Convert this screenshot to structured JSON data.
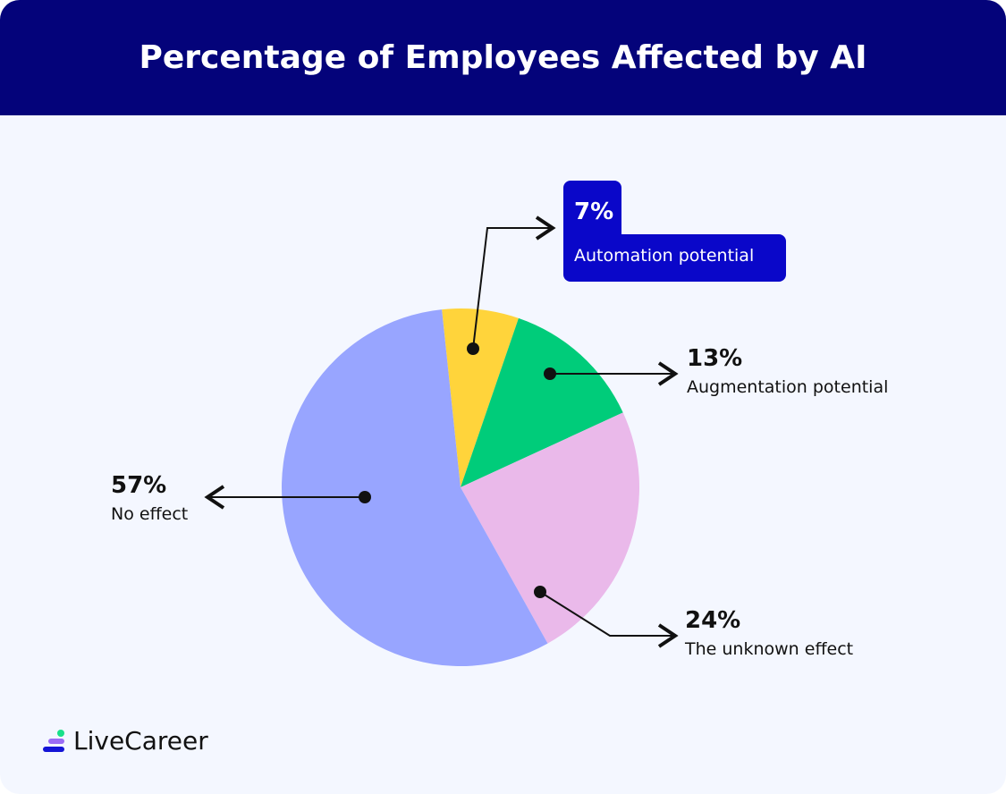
{
  "chart_data": {
    "type": "pie",
    "title": "Percentage of Employees Affected by AI",
    "slices": [
      {
        "label": "Automation potential",
        "value": 7,
        "display": "7%",
        "color": "#ffd43b"
      },
      {
        "label": "Augmentation potential",
        "value": 13,
        "display": "13%",
        "color": "#00cc7a"
      },
      {
        "label": "The unknown effect",
        "value": 24,
        "display": "24%",
        "color": "#eab9ea"
      },
      {
        "label": "No effect",
        "value": 57,
        "display": "57%",
        "color": "#98a5ff"
      }
    ]
  },
  "brand": {
    "name": "LiveCareer"
  },
  "colors": {
    "header": "#04037a",
    "highlight": "#0a07c9",
    "background": "#f4f7ff"
  }
}
